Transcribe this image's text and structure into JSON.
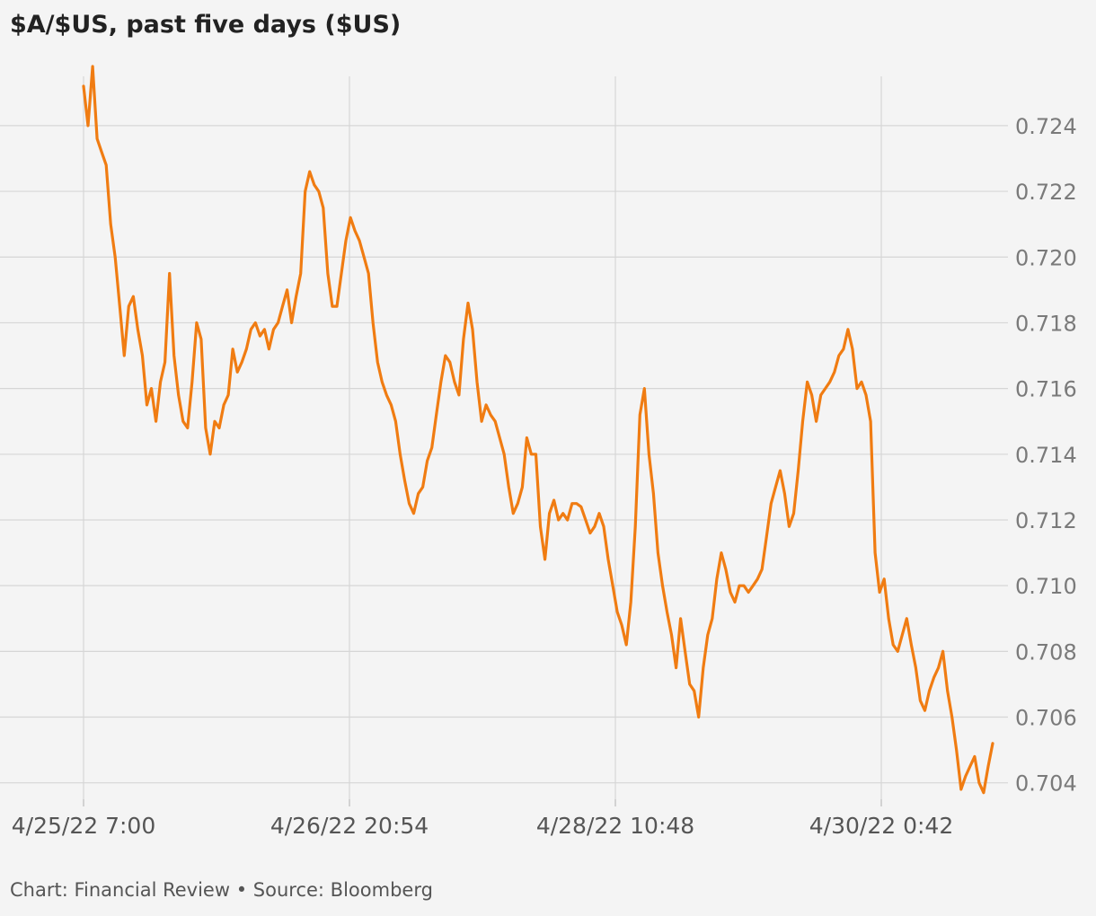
{
  "title": "$A/$US, past five days ($US)",
  "footer": {
    "chart_label": "Chart: Financial Review",
    "separator": "•",
    "source_label": "Source: Bloomberg"
  },
  "colors": {
    "line": "#f07c12",
    "grid": "#d6d6d6",
    "background": "#f4f4f4",
    "tick_text": "#7a7a7a"
  },
  "chart_data": {
    "type": "line",
    "title": "$A/$US, past five days ($US)",
    "xlabel": "",
    "ylabel": "",
    "ylim": [
      0.7035,
      0.7255
    ],
    "xlim": [
      "4/25/22 7:00",
      "4/30/22 10:30"
    ],
    "y_ticks": [
      0.704,
      0.706,
      0.708,
      0.71,
      0.712,
      0.714,
      0.716,
      0.718,
      0.72,
      0.722,
      0.724
    ],
    "x_tick_labels": [
      "4/25/22 7:00",
      "4/26/22 20:54",
      "4/28/22 10:48",
      "4/30/22 0:42"
    ],
    "grid": true,
    "y_axis_position": "right",
    "series": [
      {
        "values": [
          0.7252,
          0.724,
          0.7258,
          0.7236,
          0.7232,
          0.7228,
          0.721,
          0.72,
          0.7185,
          0.717,
          0.7185,
          0.7188,
          0.7178,
          0.717,
          0.7155,
          0.716,
          0.715,
          0.7162,
          0.7168,
          0.7195,
          0.717,
          0.7158,
          0.715,
          0.7148,
          0.7162,
          0.718,
          0.7175,
          0.7148,
          0.714,
          0.715,
          0.7148,
          0.7155,
          0.7158,
          0.7172,
          0.7165,
          0.7168,
          0.7172,
          0.7178,
          0.718,
          0.7176,
          0.7178,
          0.7172,
          0.7178,
          0.718,
          0.7185,
          0.719,
          0.718,
          0.7188,
          0.7195,
          0.722,
          0.7226,
          0.7222,
          0.722,
          0.7215,
          0.7195,
          0.7185,
          0.7185,
          0.7195,
          0.7205,
          0.7212,
          0.7208,
          0.7205,
          0.72,
          0.7195,
          0.718,
          0.7168,
          0.7162,
          0.7158,
          0.7155,
          0.715,
          0.714,
          0.7132,
          0.7125,
          0.7122,
          0.7128,
          0.713,
          0.7138,
          0.7142,
          0.7152,
          0.7162,
          0.717,
          0.7168,
          0.7162,
          0.7158,
          0.7175,
          0.7186,
          0.7178,
          0.7162,
          0.715,
          0.7155,
          0.7152,
          0.715,
          0.7145,
          0.714,
          0.713,
          0.7122,
          0.7125,
          0.713,
          0.7145,
          0.714,
          0.714,
          0.7118,
          0.7108,
          0.7122,
          0.7126,
          0.712,
          0.7122,
          0.712,
          0.7125,
          0.7125,
          0.7124,
          0.712,
          0.7116,
          0.7118,
          0.7122,
          0.7118,
          0.7108,
          0.71,
          0.7092,
          0.7088,
          0.7082,
          0.7095,
          0.7118,
          0.7152,
          0.716,
          0.714,
          0.7128,
          0.711,
          0.71,
          0.7092,
          0.7085,
          0.7075,
          0.709,
          0.708,
          0.707,
          0.7068,
          0.706,
          0.7075,
          0.7085,
          0.709,
          0.7102,
          0.711,
          0.7105,
          0.7098,
          0.7095,
          0.71,
          0.71,
          0.7098,
          0.71,
          0.7102,
          0.7105,
          0.7115,
          0.7125,
          0.713,
          0.7135,
          0.7128,
          0.7118,
          0.7122,
          0.7135,
          0.715,
          0.7162,
          0.7158,
          0.715,
          0.7158,
          0.716,
          0.7162,
          0.7165,
          0.717,
          0.7172,
          0.7178,
          0.7172,
          0.716,
          0.7162,
          0.7158,
          0.715,
          0.711,
          0.7098,
          0.7102,
          0.709,
          0.7082,
          0.708,
          0.7085,
          0.709,
          0.7082,
          0.7075,
          0.7065,
          0.7062,
          0.7068,
          0.7072,
          0.7075,
          0.708,
          0.7068,
          0.706,
          0.705,
          0.7038,
          0.7042,
          0.7045,
          0.7048,
          0.704,
          0.7037,
          0.7045,
          0.7052
        ]
      }
    ]
  }
}
